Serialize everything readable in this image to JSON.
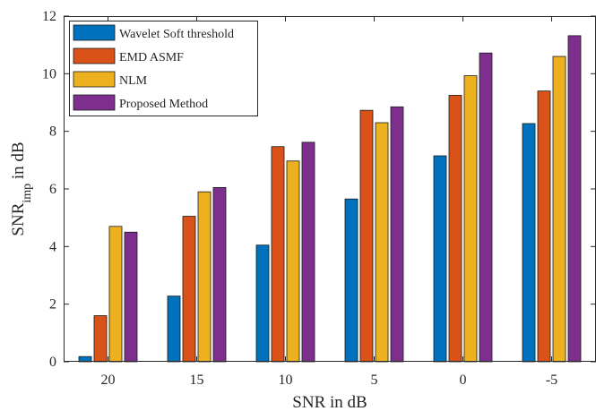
{
  "chart_data": {
    "type": "bar",
    "categories": [
      "20",
      "15",
      "10",
      "5",
      "0",
      "-5"
    ],
    "series": [
      {
        "name": "Wavelet Soft threshold",
        "color": "#0072BD",
        "values": [
          0.18,
          2.28,
          4.05,
          5.65,
          7.15,
          8.27
        ]
      },
      {
        "name": "EMD ASMF",
        "color": "#D95319",
        "values": [
          1.6,
          5.05,
          7.47,
          8.73,
          9.25,
          9.4
        ]
      },
      {
        "name": "NLM",
        "color": "#EDB120",
        "values": [
          4.7,
          5.9,
          6.97,
          8.3,
          9.93,
          10.6
        ]
      },
      {
        "name": "Proposed Method",
        "color": "#7E2F8E",
        "values": [
          4.5,
          6.05,
          7.62,
          8.85,
          10.72,
          11.32
        ]
      }
    ],
    "xlabel": "SNR in dB",
    "ylabel": {
      "main": "SNR",
      "subscript": "imp",
      "suffix": " in dB"
    },
    "ylim": [
      0,
      12
    ],
    "yticks": [
      0,
      2,
      4,
      6,
      8,
      10,
      12
    ],
    "grid": false,
    "legend": "top-left"
  }
}
